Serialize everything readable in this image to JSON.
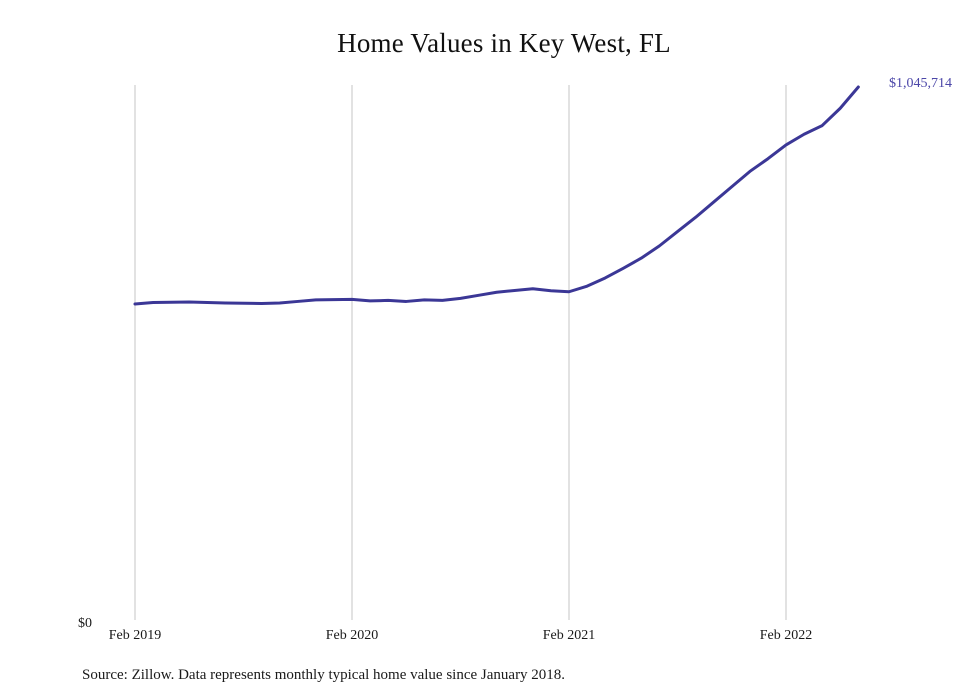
{
  "chart_data": {
    "type": "line",
    "title": "Home Values in Key West, FL",
    "xlabel": "",
    "ylabel": "",
    "x_tick_labels": [
      "Feb 2019",
      "Feb 2020",
      "Feb 2021",
      "Feb 2022"
    ],
    "y_tick_labels": [
      "$0"
    ],
    "ylim": [
      0,
      1045714
    ],
    "grid": "vertical",
    "legend": "none",
    "end_label": "$1,045,714",
    "series": [
      {
        "color": "#3b3796",
        "points": [
          {
            "x": "2019-02",
            "y": 620000
          },
          {
            "x": "2019-03",
            "y": 623000
          },
          {
            "x": "2019-05",
            "y": 624000
          },
          {
            "x": "2019-07",
            "y": 622000
          },
          {
            "x": "2019-09",
            "y": 621000
          },
          {
            "x": "2019-10",
            "y": 622000
          },
          {
            "x": "2019-11",
            "y": 625000
          },
          {
            "x": "2019-12",
            "y": 628000
          },
          {
            "x": "2020-02",
            "y": 629000
          },
          {
            "x": "2020-03",
            "y": 626000
          },
          {
            "x": "2020-04",
            "y": 627000
          },
          {
            "x": "2020-05",
            "y": 625000
          },
          {
            "x": "2020-06",
            "y": 628000
          },
          {
            "x": "2020-07",
            "y": 627000
          },
          {
            "x": "2020-08",
            "y": 631000
          },
          {
            "x": "2020-09",
            "y": 637000
          },
          {
            "x": "2020-10",
            "y": 643000
          },
          {
            "x": "2020-12",
            "y": 650000
          },
          {
            "x": "2021-01",
            "y": 646000
          },
          {
            "x": "2021-02",
            "y": 644000
          },
          {
            "x": "2021-03",
            "y": 655000
          },
          {
            "x": "2021-04",
            "y": 671000
          },
          {
            "x": "2021-05",
            "y": 690000
          },
          {
            "x": "2021-06",
            "y": 710000
          },
          {
            "x": "2021-07",
            "y": 734000
          },
          {
            "x": "2021-08",
            "y": 762000
          },
          {
            "x": "2021-09",
            "y": 790000
          },
          {
            "x": "2021-10",
            "y": 820000
          },
          {
            "x": "2021-11",
            "y": 850000
          },
          {
            "x": "2021-12",
            "y": 880000
          },
          {
            "x": "2022-01",
            "y": 905000
          },
          {
            "x": "2022-02",
            "y": 932000
          },
          {
            "x": "2022-03",
            "y": 953000
          },
          {
            "x": "2022-04",
            "y": 970000
          },
          {
            "x": "2022-05",
            "y": 1004000
          },
          {
            "x": "2022-06",
            "y": 1045714
          }
        ]
      }
    ]
  },
  "source_note": "Source: Zillow. Data represents monthly typical home value since January 2018.",
  "colors": {
    "line": "#3b3796",
    "end_label": "#4b46a8",
    "gridline": "#c4c4c4",
    "text": "#1a1a1a"
  }
}
